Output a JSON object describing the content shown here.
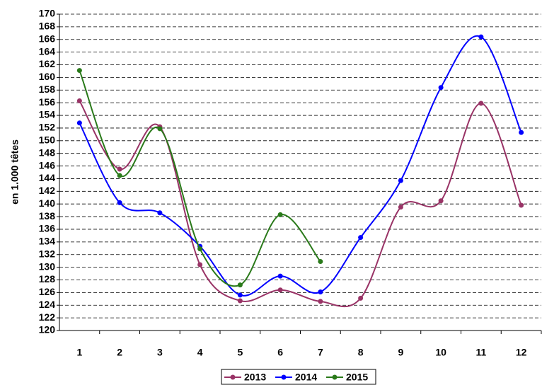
{
  "chart_data": {
    "type": "line",
    "y_label": "en 1.000 têtes",
    "categories": [
      "1",
      "2",
      "3",
      "4",
      "5",
      "6",
      "7",
      "8",
      "9",
      "10",
      "11",
      "12"
    ],
    "series": [
      {
        "name": "2013",
        "color": "#993366",
        "values": [
          156.3,
          145.5,
          152.2,
          130.4,
          124.7,
          126.4,
          124.6,
          125.1,
          139.5,
          140.5,
          155.9,
          139.8
        ]
      },
      {
        "name": "2014",
        "color": "#0000ff",
        "values": [
          152.8,
          140.2,
          138.6,
          133.3,
          125.6,
          128.6,
          126.1,
          134.7,
          143.7,
          158.4,
          166.4,
          151.3
        ]
      },
      {
        "name": "2015",
        "color": "#2a7a1a",
        "values": [
          161.1,
          144.5,
          151.9,
          132.9,
          127.2,
          138.3,
          130.9,
          null,
          null,
          null,
          null,
          null
        ]
      }
    ],
    "ylim": [
      120,
      170
    ],
    "yticks": [
      120,
      122,
      124,
      126,
      128,
      130,
      132,
      134,
      136,
      138,
      140,
      142,
      144,
      146,
      148,
      150,
      152,
      154,
      156,
      158,
      160,
      162,
      164,
      166,
      168,
      170
    ],
    "grid": true,
    "smooth": true,
    "legend": "bottom"
  }
}
